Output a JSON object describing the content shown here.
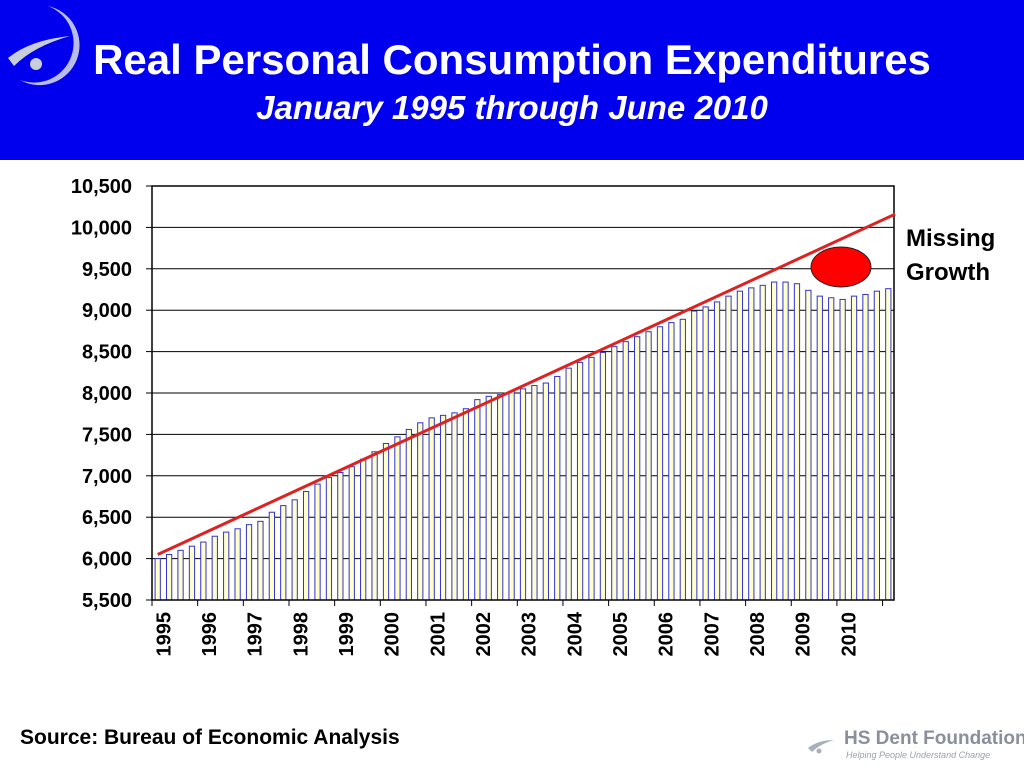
{
  "header": {
    "title": "Real Personal Consumption Expenditures",
    "subtitle": "January 1995 through June 2010",
    "logo_icon": "hs-dent-swoosh-icon"
  },
  "annotation": {
    "line1": "Missing",
    "line2": "Growth",
    "marker_color": "#ff0000"
  },
  "footer": {
    "source": "Source: Bureau of Economic Analysis",
    "logo_name": "HS Dent Foundation",
    "logo_tagline": "Helping People Understand Change"
  },
  "colors": {
    "header_bg": "#0000ee",
    "bar_fill": "#ffffcc",
    "bar_border": "#3333cc",
    "trend_line": "#dd2222",
    "gridline": "#000000"
  },
  "chart_data": {
    "type": "bar",
    "title": "",
    "xlabel": "",
    "ylabel": "",
    "ylim": [
      5500,
      10500
    ],
    "yticks": [
      "5,500",
      "6,000",
      "6,500",
      "7,000",
      "7,500",
      "8,000",
      "8,500",
      "9,000",
      "9,500",
      "10,000",
      "10,500"
    ],
    "ytick_values": [
      5500,
      6000,
      6500,
      7000,
      7500,
      8000,
      8500,
      9000,
      9500,
      10000,
      10500
    ],
    "xtick_labels": [
      "1995",
      "1996",
      "1997",
      "1998",
      "1999",
      "2000",
      "2001",
      "2002",
      "2003",
      "2004",
      "2005",
      "2006",
      "2007",
      "2008",
      "2009",
      "2010"
    ],
    "grid": true,
    "periods_per_year": 4,
    "series": [
      {
        "values": [
          6000,
          6050,
          6100,
          6150,
          6200,
          6270,
          6320,
          6360,
          6410,
          6450,
          6560,
          6640,
          6710,
          6810,
          6900,
          6980,
          7040,
          7110,
          7200,
          7290,
          7390,
          7470,
          7560,
          7640,
          7700,
          7730,
          7760,
          7810,
          7920,
          7960,
          7980,
          8020,
          8050,
          8090,
          8120,
          8200,
          8300,
          8370,
          8430,
          8490,
          8560,
          8620,
          8680,
          8740,
          8800,
          8850,
          8890,
          8990,
          9040,
          9100,
          9170,
          9230,
          9270,
          9300,
          9340,
          9340,
          9320,
          9240,
          9170,
          9150,
          9130,
          9170,
          9190,
          9230,
          9260
        ]
      }
    ],
    "trend_line": {
      "start_value": 6050,
      "end_value": 10160
    }
  }
}
